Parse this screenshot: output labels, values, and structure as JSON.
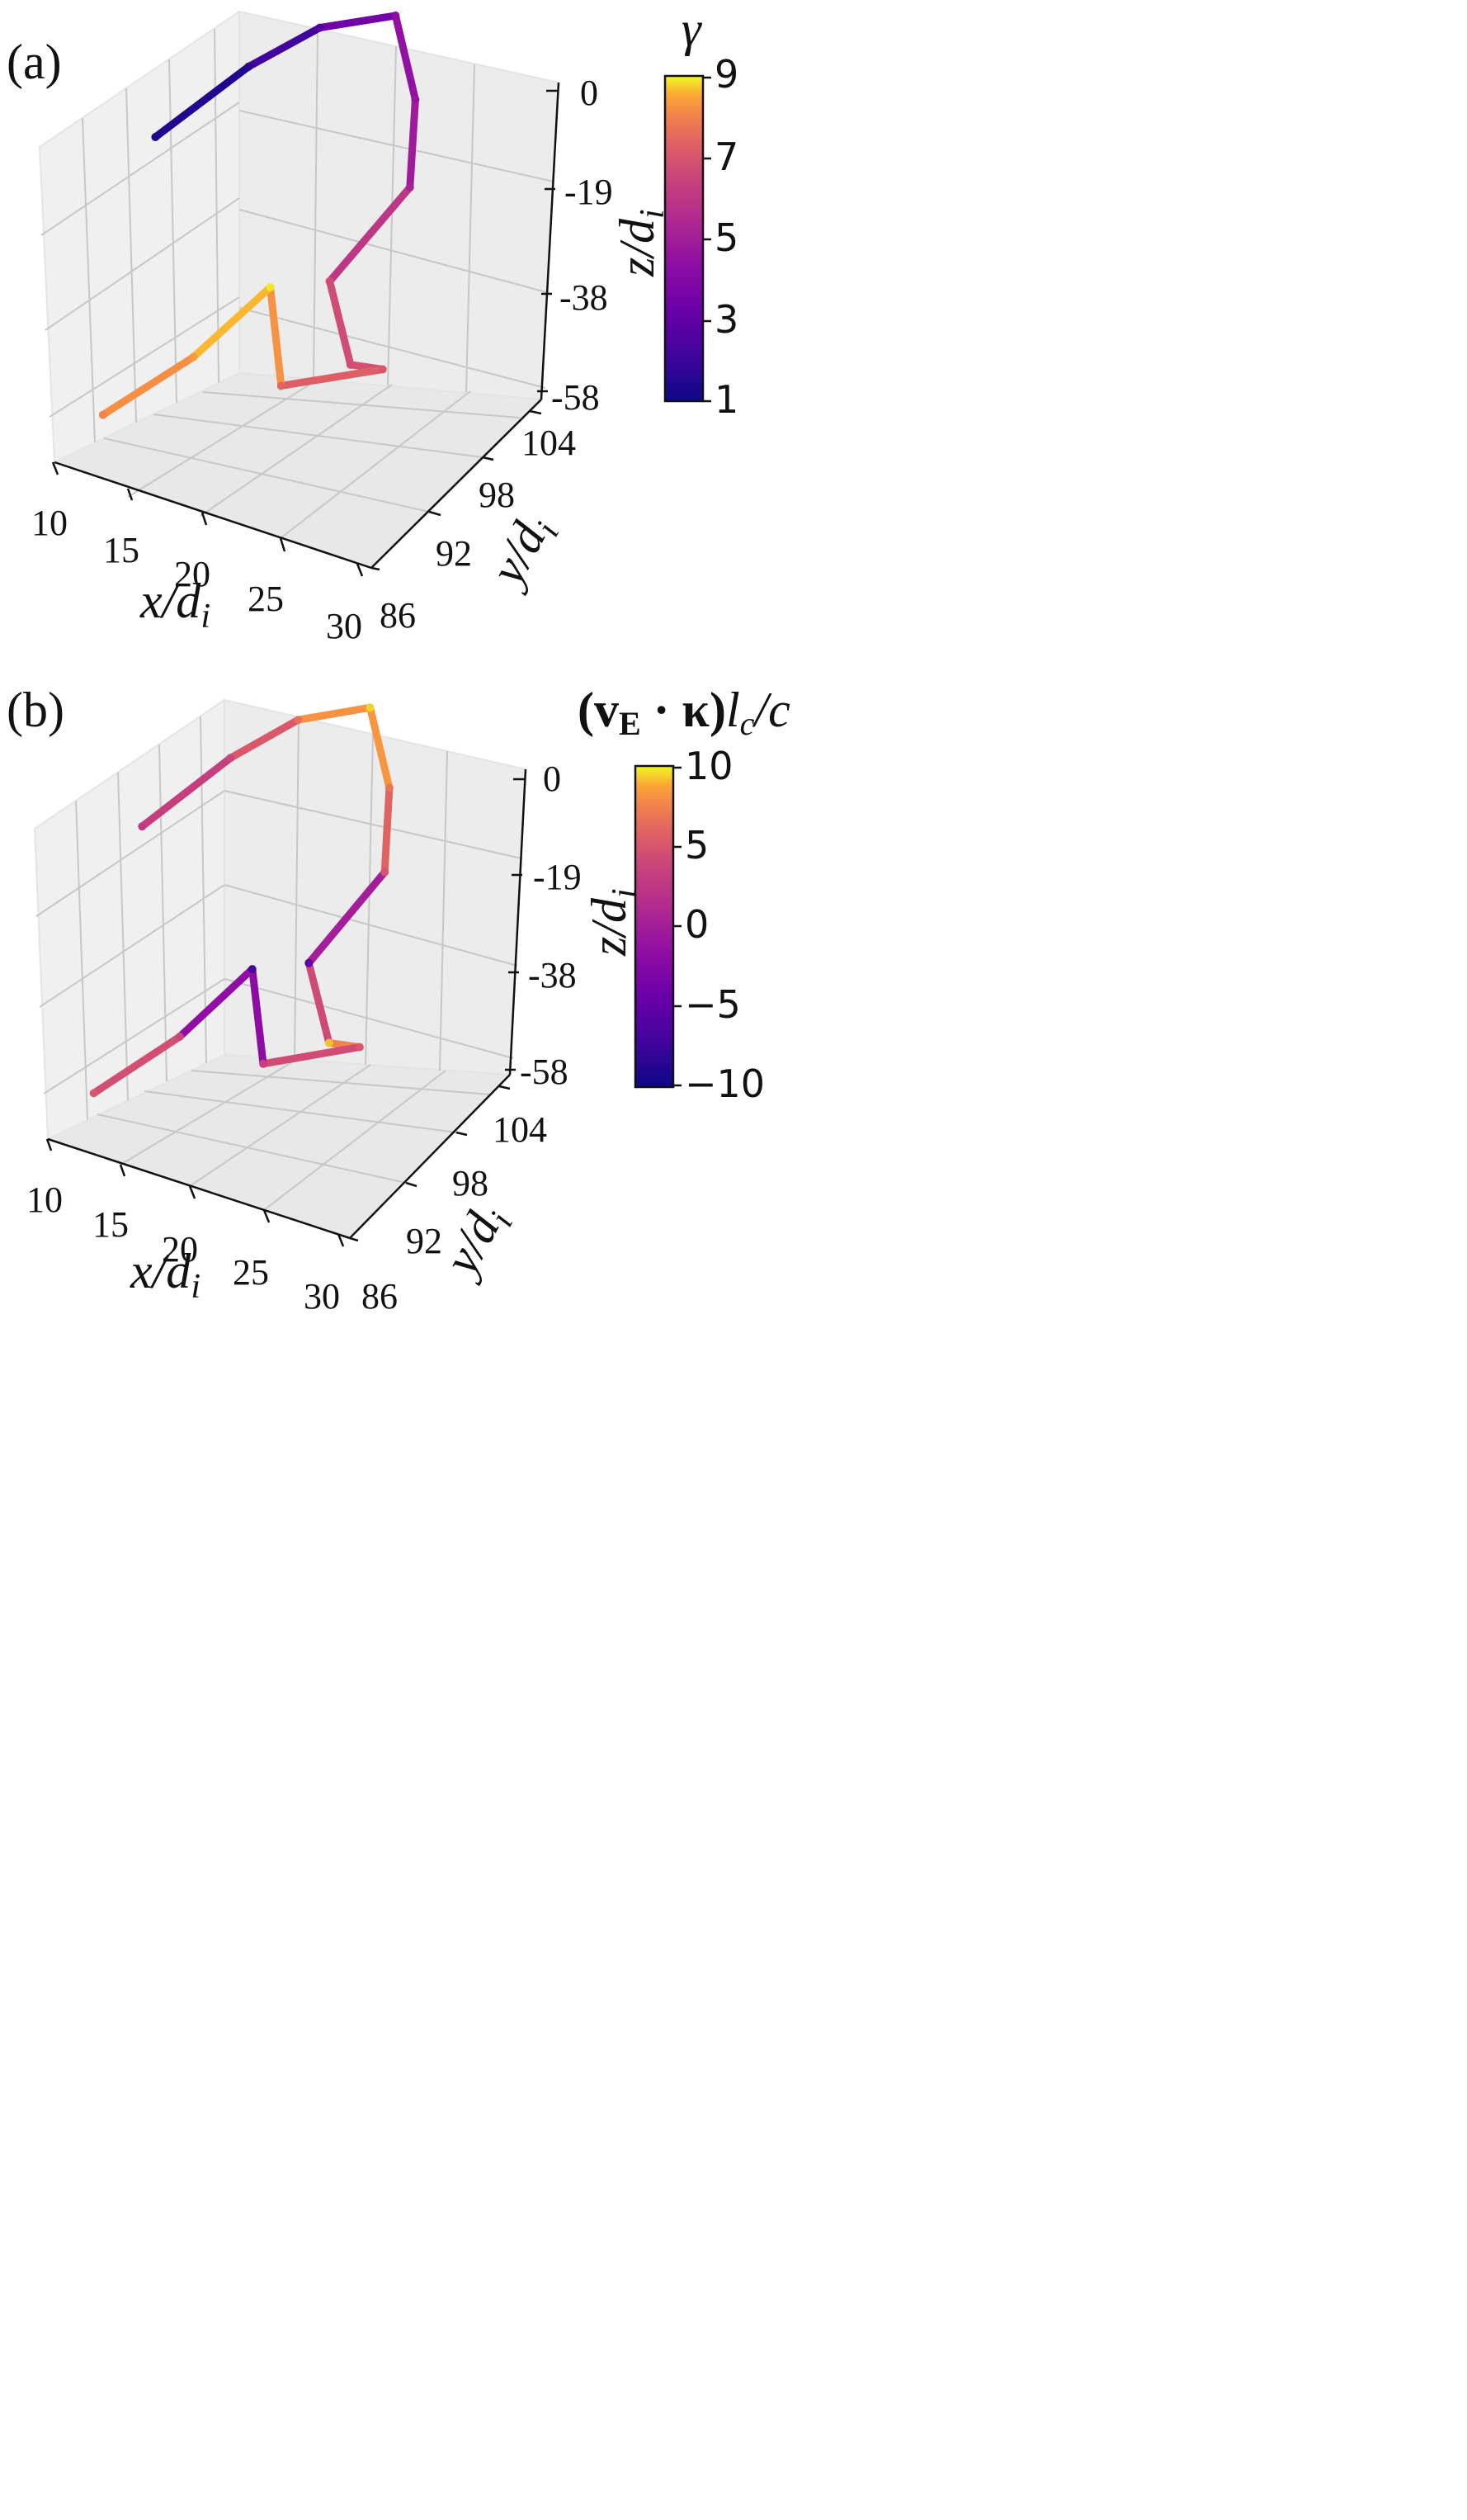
{
  "chart_data": [
    {
      "panel_label": "(a)",
      "type": "line3d",
      "xlabel": "x/d_i",
      "ylabel": "y/d_i",
      "zlabel": "z/d_i",
      "xticks": [
        "10",
        "15",
        "20",
        "25",
        "30"
      ],
      "yticks": [
        "86",
        "92",
        "98",
        "104"
      ],
      "zticks": [
        "0",
        "-19",
        "-38",
        "-58"
      ],
      "xlim": [
        10,
        30
      ],
      "ylim": [
        86,
        104
      ],
      "zlim": [
        -58,
        0
      ],
      "grid": true,
      "colormap": "plasma",
      "colorbar": {
        "title": "γ",
        "ticks": [
          "1",
          "3",
          "5",
          "7",
          "9"
        ],
        "range": [
          1,
          9
        ]
      },
      "trajectory": [
        {
          "x": 11.0,
          "y": 90.0,
          "z": -10.0,
          "c": 1.2
        },
        {
          "x": 14.0,
          "y": 94.0,
          "z": -2.0,
          "c": 1.5
        },
        {
          "x": 16.0,
          "y": 98.0,
          "z": 0.0,
          "c": 2.3
        },
        {
          "x": 19.0,
          "y": 101.0,
          "z": 0.0,
          "c": 3.6
        },
        {
          "x": 21.0,
          "y": 101.0,
          "z": -12.0,
          "c": 3.9
        },
        {
          "x": 22.0,
          "y": 100.0,
          "z": -24.0,
          "c": 4.3
        },
        {
          "x": 20.0,
          "y": 96.0,
          "z": -35.0,
          "c": 5.6
        },
        {
          "x": 23.0,
          "y": 94.0,
          "z": -43.0,
          "c": 5.6
        },
        {
          "x": 24.5,
          "y": 95.0,
          "z": -44.0,
          "c": 5.9
        },
        {
          "x": 20.0,
          "y": 92.0,
          "z": -46.0,
          "c": 6.4
        },
        {
          "x": 16.5,
          "y": 96.0,
          "z": -39.0,
          "c": 8.8
        },
        {
          "x": 14.0,
          "y": 93.0,
          "z": -48.0,
          "c": 7.8
        },
        {
          "x": 11.5,
          "y": 88.0,
          "z": -52.0,
          "c": 7.2
        }
      ]
    },
    {
      "panel_label": "(b)",
      "type": "line3d",
      "xlabel": "x/d_i",
      "ylabel": "y/d_i",
      "zlabel": "z/d_i",
      "xticks": [
        "10",
        "15",
        "20",
        "25",
        "30"
      ],
      "yticks": [
        "86",
        "92",
        "98",
        "104"
      ],
      "zticks": [
        "0",
        "-19",
        "-38",
        "-58"
      ],
      "xlim": [
        10,
        30
      ],
      "ylim": [
        86,
        104
      ],
      "zlim": [
        -58,
        0
      ],
      "grid": true,
      "colormap": "plasma",
      "colorbar": {
        "title": "(vE · κ)lc/c",
        "ticks": [
          "10",
          "5",
          "0",
          "−5",
          "−10"
        ],
        "range": [
          -10,
          10
        ]
      },
      "trajectory": [
        {
          "x": 11.0,
          "y": 90.0,
          "z": -10.0,
          "c": 0.0
        },
        {
          "x": 14.0,
          "y": 94.0,
          "z": -2.0,
          "c": 1.0
        },
        {
          "x": 16.0,
          "y": 98.0,
          "z": 0.0,
          "c": 4.0
        },
        {
          "x": 19.0,
          "y": 101.0,
          "z": 0.0,
          "c": 9.0
        },
        {
          "x": 21.0,
          "y": 101.0,
          "z": -12.0,
          "c": 4.5
        },
        {
          "x": 22.0,
          "y": 100.0,
          "z": -24.0,
          "c": 2.0
        },
        {
          "x": 20.0,
          "y": 96.0,
          "z": -35.0,
          "c": -6.0
        },
        {
          "x": 23.0,
          "y": 94.0,
          "z": -43.0,
          "c": 8.5
        },
        {
          "x": 24.5,
          "y": 95.0,
          "z": -44.0,
          "c": 2.5
        },
        {
          "x": 20.0,
          "y": 92.0,
          "z": -46.0,
          "c": 0.5
        },
        {
          "x": 16.5,
          "y": 96.0,
          "z": -39.0,
          "c": -7.5
        },
        {
          "x": 14.0,
          "y": 93.0,
          "z": -48.0,
          "c": 1.0
        },
        {
          "x": 11.5,
          "y": 88.0,
          "z": -52.0,
          "c": 2.5
        }
      ]
    }
  ]
}
